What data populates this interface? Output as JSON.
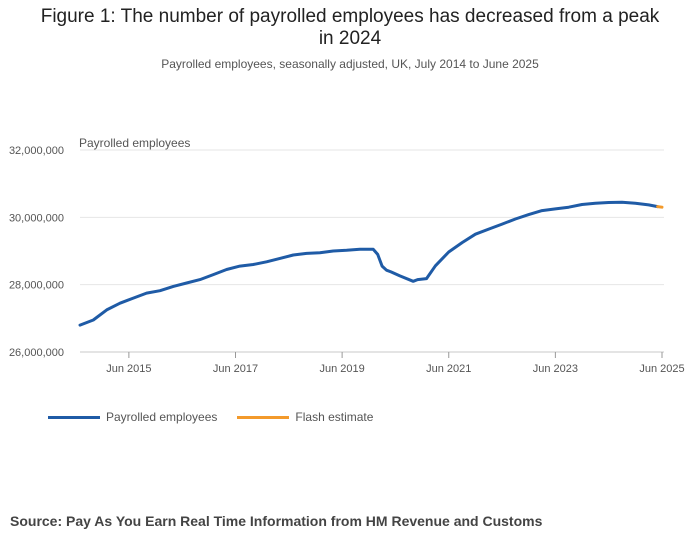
{
  "figure": {
    "title_line1": "Figure 1: The number of payrolled employees has decreased from a peak",
    "title_line2": "in 2024",
    "subtitle": "Payrolled employees, seasonally adjusted, UK, July 2014 to June 2025"
  },
  "source": "Source: Pay As You Earn Real Time Information from HM Revenue and Customs",
  "colors": {
    "series": "#1f5ba6",
    "flash": "#f39a2b",
    "grid": "#e6e6e6",
    "axis": "#555555"
  },
  "chart_data": {
    "type": "line",
    "ylabel": "Payrolled employees",
    "ylim": [
      26000000,
      32000000
    ],
    "xlim": [
      "2014-07",
      "2025-06"
    ],
    "yticks": [
      26000000,
      28000000,
      30000000,
      32000000
    ],
    "ytick_labels": [
      "26,000,000",
      "28,000,000",
      "30,000,000",
      "32,000,000"
    ],
    "xticks": [
      "2015-06",
      "2017-06",
      "2019-06",
      "2021-06",
      "2023-06",
      "2025-06"
    ],
    "xtick_labels": [
      "Jun 2015",
      "Jun 2017",
      "Jun 2019",
      "Jun 2021",
      "Jun 2023",
      "Jun 2025"
    ],
    "grid": true,
    "legend_position": "bottom-left",
    "series": [
      {
        "name": "Payrolled employees",
        "x": [
          "2014-07",
          "2014-10",
          "2015-01",
          "2015-04",
          "2015-07",
          "2015-10",
          "2016-01",
          "2016-04",
          "2016-07",
          "2016-10",
          "2017-01",
          "2017-04",
          "2017-07",
          "2017-10",
          "2018-01",
          "2018-04",
          "2018-07",
          "2018-10",
          "2019-01",
          "2019-04",
          "2019-07",
          "2019-10",
          "2020-01",
          "2020-02",
          "2020-03",
          "2020-04",
          "2020-05",
          "2020-07",
          "2020-10",
          "2020-11",
          "2021-01",
          "2021-03",
          "2021-06",
          "2021-09",
          "2021-12",
          "2022-03",
          "2022-06",
          "2022-09",
          "2022-12",
          "2023-03",
          "2023-06",
          "2023-09",
          "2023-12",
          "2024-03",
          "2024-06",
          "2024-09",
          "2024-12",
          "2025-03",
          "2025-05"
        ],
        "values": [
          26800000,
          26950000,
          27250000,
          27450000,
          27600000,
          27750000,
          27820000,
          27950000,
          28050000,
          28150000,
          28300000,
          28450000,
          28550000,
          28600000,
          28680000,
          28780000,
          28880000,
          28930000,
          28950000,
          29000000,
          29020000,
          29050000,
          29050000,
          28900000,
          28550000,
          28430000,
          28380000,
          28260000,
          28100000,
          28150000,
          28180000,
          28560000,
          28970000,
          29250000,
          29500000,
          29650000,
          29800000,
          29950000,
          30080000,
          30200000,
          30250000,
          30300000,
          30380000,
          30420000,
          30440000,
          30450000,
          30420000,
          30370000,
          30320000
        ]
      },
      {
        "name": "Flash estimate",
        "x": [
          "2025-05",
          "2025-06"
        ],
        "values": [
          30320000,
          30300000
        ]
      }
    ]
  }
}
